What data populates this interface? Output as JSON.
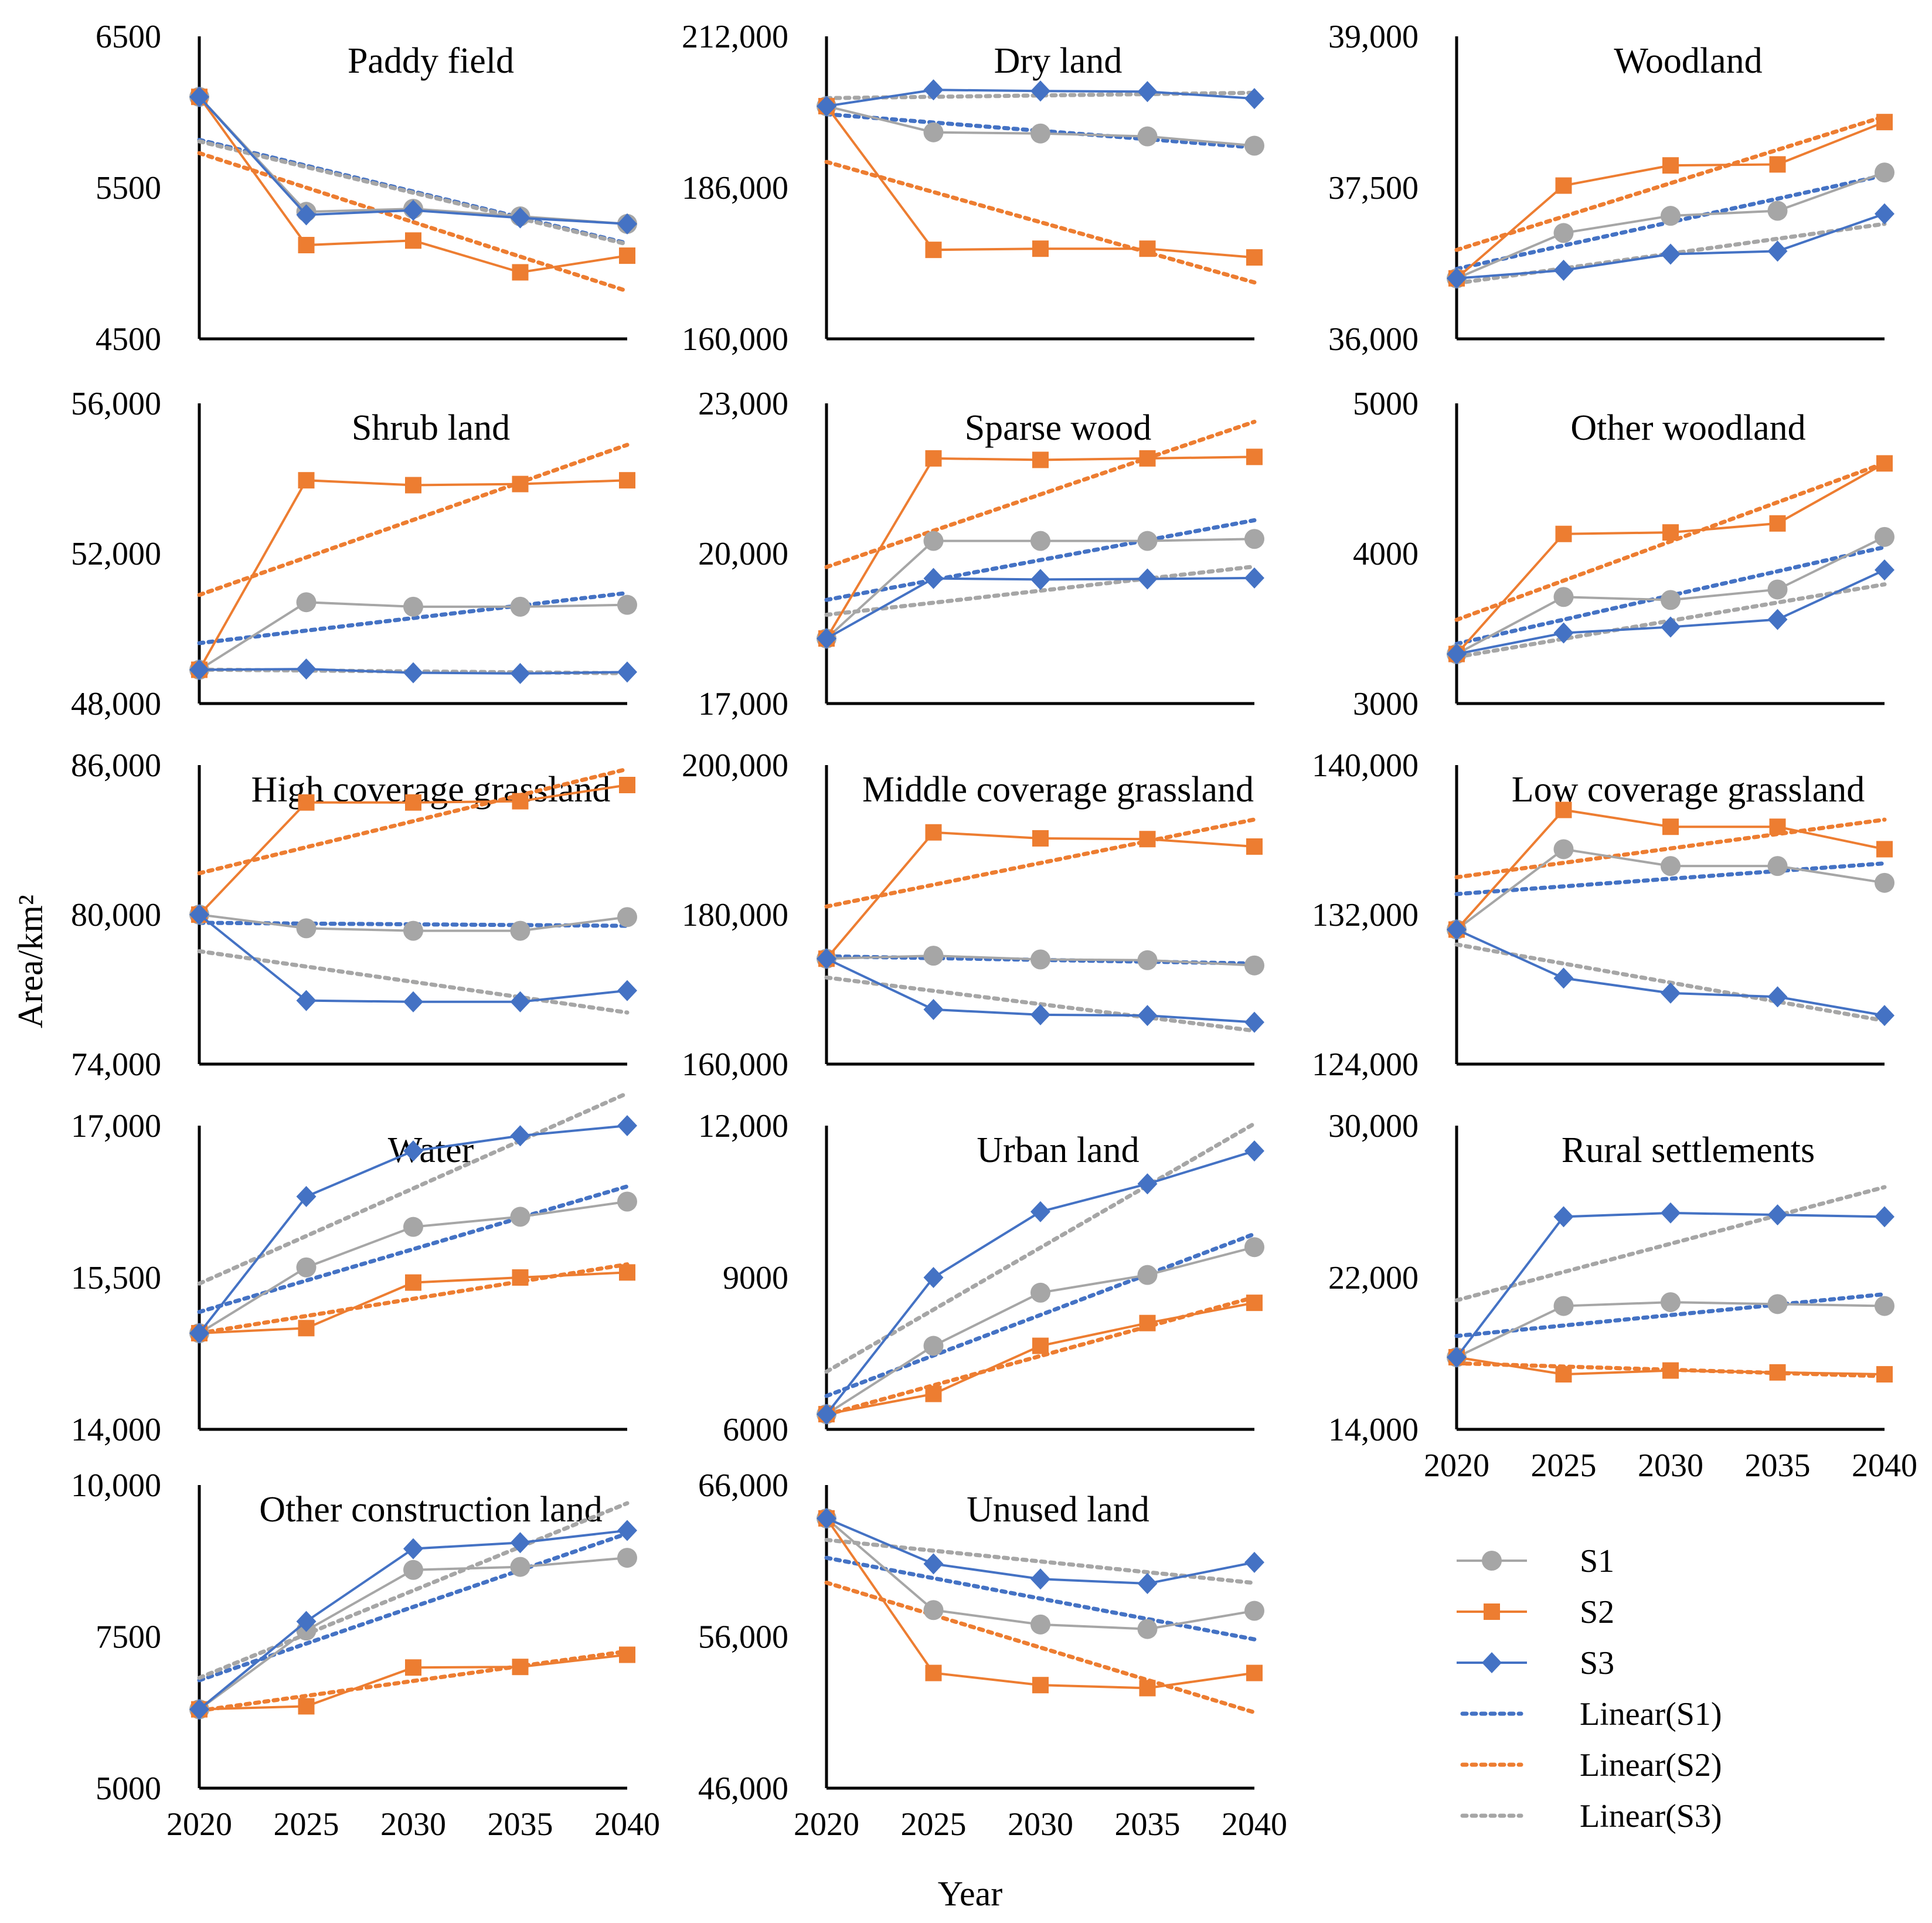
{
  "figure": {
    "ylabel": "Area/km²",
    "xlabel": "Year",
    "years": [
      "2020",
      "2025",
      "2030",
      "2035",
      "2040"
    ]
  },
  "legend": [
    {
      "key": "S1",
      "label": "S1",
      "marker": "circle",
      "style": "solid"
    },
    {
      "key": "S2",
      "label": "S2",
      "marker": "square",
      "style": "solid"
    },
    {
      "key": "S3",
      "label": "S3",
      "marker": "diamond",
      "style": "solid"
    },
    {
      "key": "S1",
      "label": "Linear(S1)",
      "marker": "none",
      "style": "dotted"
    },
    {
      "key": "S2",
      "label": "Linear(S2)",
      "marker": "none",
      "style": "dotted"
    },
    {
      "key": "S3",
      "label": "Linear(S3)",
      "marker": "none",
      "style": "dotted"
    }
  ],
  "colors": {
    "S1": "#A6A6A6",
    "S2": "#ED7D31",
    "S3": "#4472C4",
    "Linear(S1)": "#4472C4",
    "Linear(S2)": "#ED7D31",
    "Linear(S3)": "#A6A6A6",
    "axis": "#000000"
  },
  "chart_data": [
    {
      "type": "line",
      "title": "Paddy field",
      "x": [
        2020,
        2025,
        2030,
        2035,
        2040
      ],
      "ylim": [
        4500,
        6500
      ],
      "yticks": [
        "4500",
        "5500",
        "6500"
      ],
      "series": [
        {
          "name": "S1",
          "values": [
            6100,
            5340,
            5360,
            5310,
            5260
          ]
        },
        {
          "name": "S2",
          "values": [
            6100,
            5120,
            5150,
            4940,
            5050
          ]
        },
        {
          "name": "S3",
          "values": [
            6100,
            5320,
            5350,
            5300,
            5260
          ]
        }
      ]
    },
    {
      "type": "line",
      "title": "Dry land",
      "x": [
        2020,
        2025,
        2030,
        2035,
        2040
      ],
      "ylim": [
        160000,
        212000
      ],
      "yticks": [
        "160,000",
        "186,000",
        "212,000"
      ],
      "series": [
        {
          "name": "S1",
          "values": [
            200000,
            195500,
            195300,
            194800,
            193200
          ]
        },
        {
          "name": "S2",
          "values": [
            200000,
            175300,
            175500,
            175500,
            174000
          ]
        },
        {
          "name": "S3",
          "values": [
            200000,
            202800,
            202600,
            202500,
            201300
          ]
        }
      ]
    },
    {
      "type": "line",
      "title": "Woodland",
      "x": [
        2020,
        2025,
        2030,
        2035,
        2040
      ],
      "ylim": [
        36000,
        39000
      ],
      "yticks": [
        "36,000",
        "37,500",
        "39,000"
      ],
      "series": [
        {
          "name": "S1",
          "values": [
            36600,
            37050,
            37220,
            37270,
            37650
          ]
        },
        {
          "name": "S2",
          "values": [
            36600,
            37520,
            37720,
            37730,
            38150
          ]
        },
        {
          "name": "S3",
          "values": [
            36600,
            36680,
            36840,
            36870,
            37240
          ]
        }
      ]
    },
    {
      "type": "line",
      "title": "Shrub land",
      "x": [
        2020,
        2025,
        2030,
        2035,
        2040
      ],
      "ylim": [
        48000,
        56000
      ],
      "yticks": [
        "48,000",
        "52,000",
        "56,000"
      ],
      "series": [
        {
          "name": "S1",
          "values": [
            48900,
            50700,
            50580,
            50580,
            50630
          ]
        },
        {
          "name": "S2",
          "values": [
            48900,
            53950,
            53820,
            53850,
            53950
          ]
        },
        {
          "name": "S3",
          "values": [
            48900,
            48920,
            48820,
            48800,
            48840
          ]
        }
      ]
    },
    {
      "type": "line",
      "title": "Sparse wood",
      "x": [
        2020,
        2025,
        2030,
        2035,
        2040
      ],
      "ylim": [
        17000,
        23000
      ],
      "yticks": [
        "17,000",
        "20,000",
        "23,000"
      ],
      "series": [
        {
          "name": "S1",
          "values": [
            18300,
            20250,
            20250,
            20250,
            20290
          ]
        },
        {
          "name": "S2",
          "values": [
            18300,
            21900,
            21870,
            21900,
            21930
          ]
        },
        {
          "name": "S3",
          "values": [
            18300,
            19500,
            19480,
            19490,
            19510
          ]
        }
      ]
    },
    {
      "type": "line",
      "title": "Other woodland",
      "x": [
        2020,
        2025,
        2030,
        2035,
        2040
      ],
      "ylim": [
        3000,
        5000
      ],
      "yticks": [
        "3000",
        "4000",
        "5000"
      ],
      "series": [
        {
          "name": "S1",
          "values": [
            3330,
            3710,
            3690,
            3760,
            4110
          ]
        },
        {
          "name": "S2",
          "values": [
            3330,
            4130,
            4140,
            4200,
            4600
          ]
        },
        {
          "name": "S3",
          "values": [
            3330,
            3470,
            3510,
            3560,
            3890
          ]
        }
      ]
    },
    {
      "type": "line",
      "title": "High coverage grassland",
      "x": [
        2020,
        2025,
        2030,
        2035,
        2040
      ],
      "ylim": [
        74000,
        86000
      ],
      "yticks": [
        "74,000",
        "80,000",
        "86,000"
      ],
      "series": [
        {
          "name": "S1",
          "values": [
            80000,
            79450,
            79350,
            79350,
            79900
          ]
        },
        {
          "name": "S2",
          "values": [
            80000,
            84500,
            84500,
            84550,
            85200
          ]
        },
        {
          "name": "S3",
          "values": [
            80000,
            76550,
            76500,
            76500,
            76950
          ]
        }
      ]
    },
    {
      "type": "line",
      "title": "Middle coverage grassland",
      "x": [
        2020,
        2025,
        2030,
        2035,
        2040
      ],
      "ylim": [
        160000,
        200000
      ],
      "yticks": [
        "160,000",
        "180,000",
        "200,000"
      ],
      "series": [
        {
          "name": "S1",
          "values": [
            174100,
            174500,
            174000,
            173900,
            173200
          ]
        },
        {
          "name": "S2",
          "values": [
            174100,
            191000,
            190200,
            190100,
            189100
          ]
        },
        {
          "name": "S3",
          "values": [
            174100,
            167300,
            166600,
            166500,
            165600
          ]
        }
      ]
    },
    {
      "type": "line",
      "title": "Low coverage grassland",
      "x": [
        2020,
        2025,
        2030,
        2035,
        2040
      ],
      "ylim": [
        124000,
        140000
      ],
      "yticks": [
        "124,000",
        "132,000",
        "140,000"
      ],
      "series": [
        {
          "name": "S1",
          "values": [
            131200,
            135500,
            134600,
            134600,
            133700
          ]
        },
        {
          "name": "S2",
          "values": [
            131200,
            137600,
            136700,
            136700,
            135500
          ]
        },
        {
          "name": "S3",
          "values": [
            131200,
            128600,
            127800,
            127600,
            126600
          ]
        }
      ]
    },
    {
      "type": "line",
      "title": "Water",
      "x": [
        2020,
        2025,
        2030,
        2035,
        2040
      ],
      "ylim": [
        14000,
        17000
      ],
      "yticks": [
        "14,000",
        "15,500",
        "17,000"
      ],
      "series": [
        {
          "name": "S1",
          "values": [
            14950,
            15600,
            16000,
            16100,
            16250
          ]
        },
        {
          "name": "S2",
          "values": [
            14950,
            15000,
            15450,
            15500,
            15550
          ]
        },
        {
          "name": "S3",
          "values": [
            14950,
            16300,
            16750,
            16900,
            17000
          ]
        }
      ]
    },
    {
      "type": "line",
      "title": "Urban land",
      "x": [
        2020,
        2025,
        2030,
        2035,
        2040
      ],
      "ylim": [
        6000,
        12000
      ],
      "yticks": [
        "6000",
        "9000",
        "12,000"
      ],
      "series": [
        {
          "name": "S1",
          "values": [
            6300,
            7650,
            8700,
            9050,
            9600
          ]
        },
        {
          "name": "S2",
          "values": [
            6300,
            6700,
            7650,
            8100,
            8500
          ]
        },
        {
          "name": "S3",
          "values": [
            6300,
            9000,
            10300,
            10850,
            11500
          ]
        }
      ]
    },
    {
      "type": "line",
      "title": "Rural settlements",
      "x": [
        2020,
        2025,
        2030,
        2035,
        2040
      ],
      "ylim": [
        14000,
        30000
      ],
      "yticks": [
        "14,000",
        "22,000",
        "30,000"
      ],
      "series": [
        {
          "name": "S1",
          "values": [
            17800,
            20500,
            20700,
            20600,
            20500
          ]
        },
        {
          "name": "S2",
          "values": [
            17800,
            16900,
            17100,
            17000,
            16900
          ]
        },
        {
          "name": "S3",
          "values": [
            17800,
            25200,
            25400,
            25300,
            25200
          ]
        }
      ]
    },
    {
      "type": "line",
      "title": "Other construction land",
      "x": [
        2020,
        2025,
        2030,
        2035,
        2040
      ],
      "ylim": [
        5000,
        10000
      ],
      "yticks": [
        "5000",
        "7500",
        "10,000"
      ],
      "series": [
        {
          "name": "S1",
          "values": [
            6300,
            7600,
            8600,
            8650,
            8800
          ]
        },
        {
          "name": "S2",
          "values": [
            6300,
            6350,
            6990,
            7000,
            7200
          ]
        },
        {
          "name": "S3",
          "values": [
            6300,
            7750,
            8950,
            9050,
            9250
          ]
        }
      ]
    },
    {
      "type": "line",
      "title": "Unused land",
      "x": [
        2020,
        2025,
        2030,
        2035,
        2040
      ],
      "ylim": [
        46000,
        66000
      ],
      "yticks": [
        "46,000",
        "56,000",
        "66,000"
      ],
      "series": [
        {
          "name": "S1",
          "values": [
            63800,
            57750,
            56800,
            56500,
            57700
          ]
        },
        {
          "name": "S2",
          "values": [
            63800,
            53600,
            52800,
            52600,
            53600
          ]
        },
        {
          "name": "S3",
          "values": [
            63800,
            60800,
            59800,
            59500,
            60900
          ]
        }
      ]
    }
  ]
}
